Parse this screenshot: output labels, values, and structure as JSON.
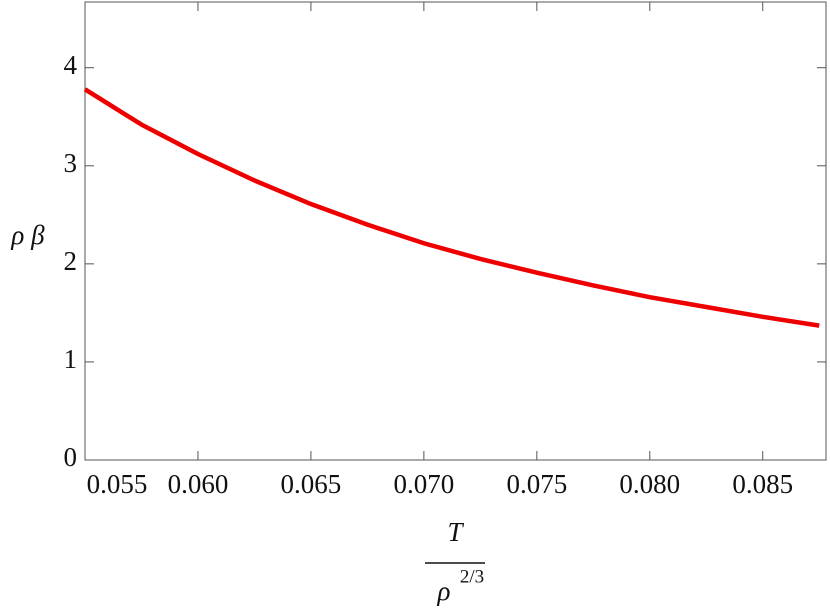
{
  "chart_data": {
    "type": "line",
    "ylabel": "ρ β",
    "xlabel_numerator": "T",
    "xlabel_denominator": "ρ",
    "xlabel_denominator_exponent": "2/3",
    "x": [
      0.055,
      0.0575,
      0.06,
      0.0625,
      0.065,
      0.0675,
      0.07,
      0.0725,
      0.075,
      0.0775,
      0.08,
      0.0825,
      0.085,
      0.0875
    ],
    "series": [
      {
        "color": "#ee0000",
        "values": [
          3.78,
          3.42,
          3.12,
          2.85,
          2.61,
          2.4,
          2.21,
          2.05,
          1.91,
          1.78,
          1.66,
          1.56,
          1.46,
          1.37
        ]
      }
    ],
    "xlim": [
      0.055,
      0.0878
    ],
    "ylim": [
      0,
      4.67
    ],
    "xticks": [
      0.055,
      {
        "value": 0.06,
        "label": "0.060"
      },
      0.065,
      {
        "value": 0.07,
        "label": "0.070"
      },
      0.075,
      {
        "value": 0.08,
        "label": "0.080"
      },
      0.085
    ],
    "yticks": [
      0,
      1,
      2,
      3,
      4
    ],
    "grid": false
  }
}
